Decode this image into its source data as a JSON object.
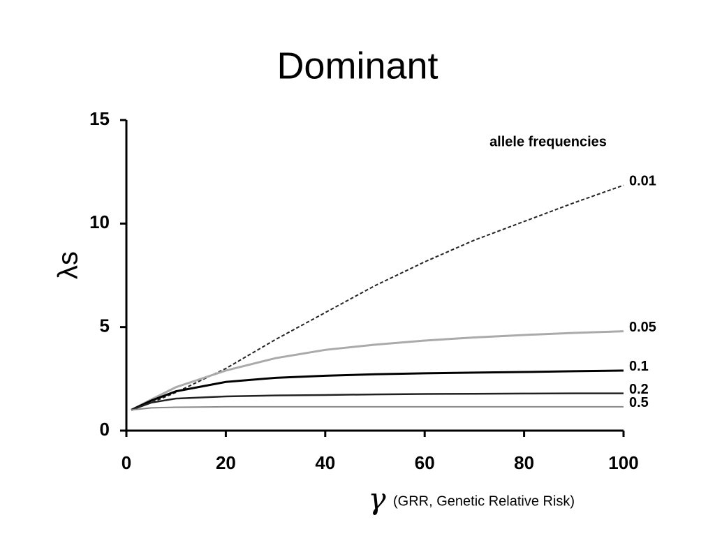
{
  "chart_data": {
    "type": "line",
    "title": "Dominant",
    "ylabel": "λs",
    "xlabel_symbol": "γ",
    "xlabel": "(GRR, Genetic Relative Risk)",
    "legend_title": "allele frequencies",
    "x": [
      1,
      5,
      10,
      20,
      30,
      40,
      50,
      60,
      70,
      80,
      90,
      100
    ],
    "series": [
      {
        "name": "0.01",
        "color": "#222222",
        "style": "dashed",
        "width": 2,
        "values": [
          1,
          1.35,
          1.85,
          3.0,
          4.4,
          5.7,
          7.0,
          8.15,
          9.2,
          10.1,
          11.0,
          11.85
        ]
      },
      {
        "name": "0.05",
        "color": "#aaaaaa",
        "style": "solid",
        "width": 3,
        "values": [
          1,
          1.5,
          2.1,
          2.9,
          3.5,
          3.9,
          4.15,
          4.35,
          4.5,
          4.62,
          4.72,
          4.8
        ]
      },
      {
        "name": "0.1",
        "color": "#000000",
        "style": "solid",
        "width": 3,
        "values": [
          1,
          1.45,
          1.9,
          2.35,
          2.55,
          2.65,
          2.72,
          2.77,
          2.8,
          2.83,
          2.87,
          2.9
        ]
      },
      {
        "name": "0.2",
        "color": "#222222",
        "style": "solid",
        "width": 2.5,
        "values": [
          1,
          1.35,
          1.55,
          1.65,
          1.7,
          1.72,
          1.75,
          1.77,
          1.78,
          1.79,
          1.8,
          1.8
        ]
      },
      {
        "name": "0.5",
        "color": "#888888",
        "style": "solid",
        "width": 2,
        "values": [
          1,
          1.1,
          1.13,
          1.15,
          1.15,
          1.15,
          1.15,
          1.15,
          1.15,
          1.15,
          1.15,
          1.15
        ]
      }
    ],
    "xlim": [
      0,
      100
    ],
    "xticks": [
      0,
      20,
      40,
      60,
      80,
      100
    ],
    "ylim": [
      0,
      15
    ],
    "yticks": [
      0,
      5,
      10,
      15
    ],
    "grid": false
  }
}
